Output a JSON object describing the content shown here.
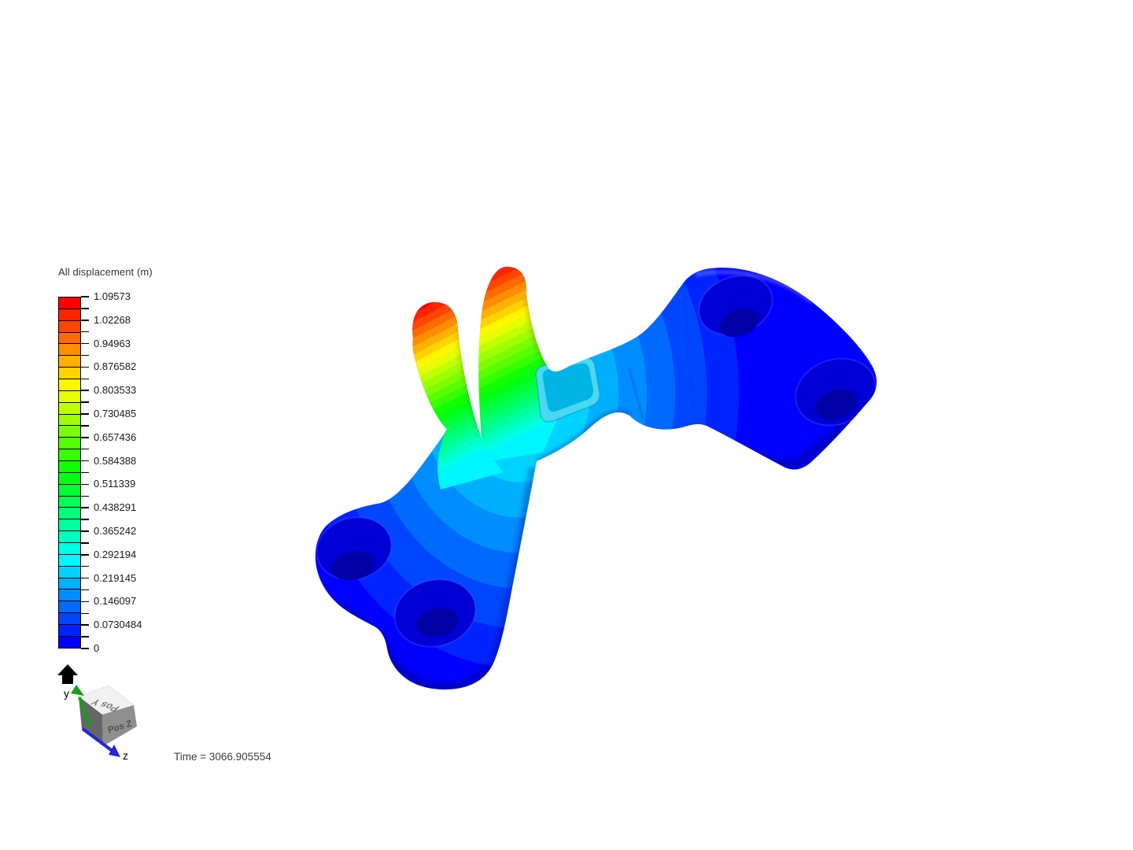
{
  "scene": {
    "background_color": "#ffffff",
    "time_label": "Time = 3066.905554"
  },
  "legend": {
    "title": "All displacement (m)",
    "tick_labels": [
      "1.09573",
      "1.02268",
      "0.94963",
      "0.876582",
      "0.803533",
      "0.730485",
      "0.657436",
      "0.584388",
      "0.511339",
      "0.438291",
      "0.365242",
      "0.292194",
      "0.219145",
      "0.146097",
      "0.0730484",
      "0"
    ],
    "colormap": [
      "#ff0000",
      "#ff2300",
      "#ff4600",
      "#ff6a00",
      "#ff8d00",
      "#ffb000",
      "#ffd300",
      "#fff600",
      "#e5ff00",
      "#c1ff00",
      "#9eff00",
      "#7bff00",
      "#58ff00",
      "#35ff00",
      "#12ff00",
      "#00ff12",
      "#00ff35",
      "#00ff58",
      "#00ff7b",
      "#00ff9e",
      "#00ffc1",
      "#00ffe5",
      "#00f6ff",
      "#00d3ff",
      "#00b0ff",
      "#008dff",
      "#006aff",
      "#0046ff",
      "#0023ff",
      "#0000ff"
    ]
  },
  "orientation_cube": {
    "up_axis_label": "y",
    "z_axis_label": "z",
    "top_face_label": "Pos Y",
    "front_face_label": "Pos Z",
    "up_arrow_color": "#000000",
    "green_axis_color": "#14a014",
    "blue_axis_color": "#2424dd",
    "top_face_color": "#f1f1f1",
    "left_face_color": "#666666",
    "front_face_color": "#8f8f8f"
  }
}
